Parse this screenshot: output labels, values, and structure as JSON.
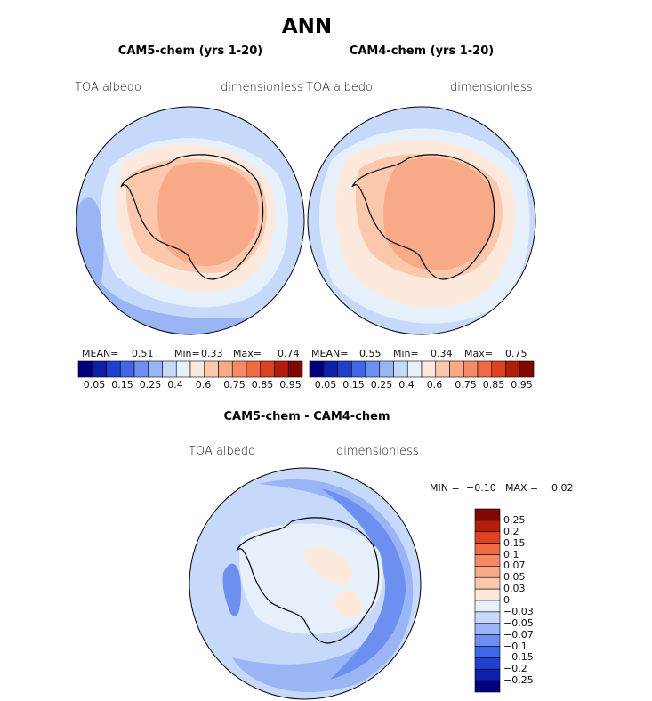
{
  "figure": {
    "main_title": "ANN"
  },
  "panels": [
    {
      "title": "CAM5-chem (yrs 1-20)",
      "variable": "TOA albedo",
      "units": "dimensionless",
      "mean_label": "MEAN=",
      "mean_value": "0.51",
      "min_label": "Min=",
      "min_value": "0.33",
      "max_label": "Max=",
      "max_value": "0.74"
    },
    {
      "title": "CAM4-chem (yrs 1-20)",
      "variable": "TOA albedo",
      "units": "dimensionless",
      "mean_label": "MEAN=",
      "mean_value": "0.55",
      "min_label": "Min=",
      "min_value": "0.34",
      "max_label": "Max=",
      "max_value": "0.75"
    }
  ],
  "diff_panel": {
    "title": "CAM5-chem - CAM4-chem",
    "variable": "TOA albedo",
    "units": "dimensionless",
    "min_label": "MIN =",
    "min_value": "−0.10",
    "max_label": "MAX =",
    "max_value": "0.02"
  },
  "colorbar_horizontal": {
    "colors": [
      "#00007f",
      "#0f1fa8",
      "#1f3fcf",
      "#3f66e6",
      "#6d8ff0",
      "#9ab5f5",
      "#c6d9fa",
      "#e6f0fb",
      "#fde9dc",
      "#fbc8ae",
      "#f7a988",
      "#f58a66",
      "#f06a44",
      "#de4321",
      "#b21d0c",
      "#800800"
    ],
    "tick_labels": [
      "0.05",
      "0.15",
      "0.25",
      "0.4",
      "0.6",
      "0.75",
      "0.85",
      "0.95"
    ]
  },
  "colorbar_vertical": {
    "colors": [
      "#00007f",
      "#0f1fa8",
      "#1f3fcf",
      "#3f66e6",
      "#6d8ff0",
      "#9ab5f5",
      "#c6d9fa",
      "#e6f0fb",
      "#fde9dc",
      "#fbc8ae",
      "#f7a988",
      "#f58a66",
      "#f06a44",
      "#de4321",
      "#b21d0c",
      "#800800"
    ],
    "tick_labels": [
      "0.25",
      "0.2",
      "0.15",
      "0.1",
      "0.07",
      "0.05",
      "0.03",
      "0",
      "−0.03",
      "−0.05",
      "−0.07",
      "−0.1",
      "−0.15",
      "−0.2",
      "−0.25"
    ]
  }
}
